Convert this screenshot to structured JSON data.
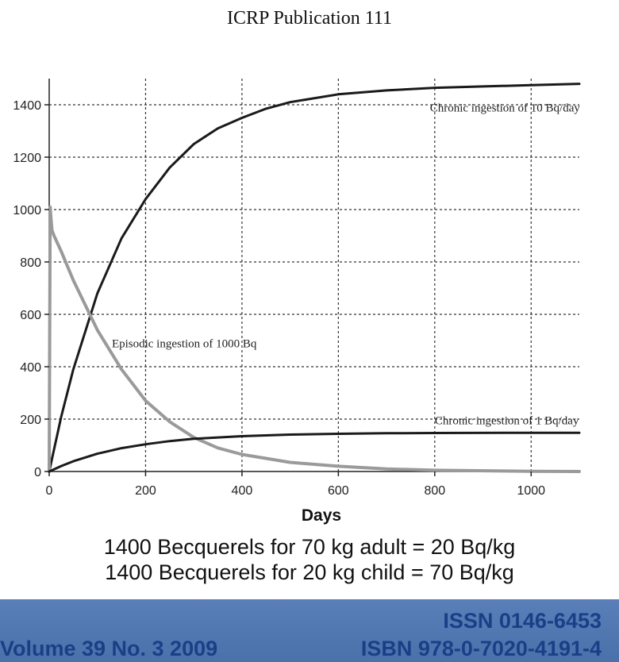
{
  "header": {
    "title": "ICRP Publication 111"
  },
  "chart_data": {
    "type": "line",
    "title": "",
    "xlabel": "Days",
    "ylabel": "",
    "xlim": [
      0,
      1100
    ],
    "ylim": [
      0,
      1500
    ],
    "x_ticks": [
      0,
      200,
      400,
      600,
      800,
      1000
    ],
    "y_ticks": [
      0,
      200,
      400,
      600,
      800,
      1000,
      1200,
      1400
    ],
    "grid": true,
    "series": [
      {
        "name": "Chronic ingestion of 10 Bq/day",
        "color": "#1a1a1a",
        "x": [
          0,
          25,
          50,
          100,
          150,
          200,
          250,
          300,
          350,
          400,
          450,
          500,
          600,
          700,
          800,
          900,
          1000,
          1100
        ],
        "y": [
          0,
          210,
          390,
          680,
          890,
          1040,
          1160,
          1250,
          1310,
          1350,
          1385,
          1410,
          1440,
          1455,
          1465,
          1470,
          1475,
          1480
        ]
      },
      {
        "name": "Episodic ingestion of 1000 Bq",
        "color": "#9a9a9a",
        "x": [
          0,
          2,
          4,
          6,
          10,
          25,
          50,
          100,
          150,
          200,
          250,
          300,
          350,
          400,
          500,
          600,
          700,
          800,
          1000,
          1100
        ],
        "y": [
          0,
          1010,
          960,
          920,
          900,
          840,
          730,
          540,
          390,
          270,
          190,
          130,
          90,
          65,
          35,
          20,
          10,
          5,
          1,
          0
        ]
      },
      {
        "name": "Chronic ingestion of 1 Bq/day",
        "color": "#1a1a1a",
        "x": [
          0,
          25,
          50,
          100,
          150,
          200,
          250,
          300,
          400,
          500,
          600,
          700,
          800,
          1000,
          1100
        ],
        "y": [
          0,
          21,
          39,
          68,
          89,
          104,
          116,
          125,
          135,
          141,
          144,
          146,
          147,
          148,
          148
        ]
      }
    ],
    "annotations": [
      {
        "text": "Chronic ingestion of 10 Bq/day",
        "x": 790,
        "y": 1390
      },
      {
        "text": "Episodic ingestion of 1000 Bq",
        "x": 130,
        "y": 490
      },
      {
        "text": "Chronic ingestion of 1 Bq/day",
        "x": 800,
        "y": 195
      }
    ]
  },
  "summary": {
    "line1": "1400 Becquerels for 70 kg adult = 20 Bq/kg",
    "line2": "1400 Becquerels for 20 kg child = 70 Bq/kg"
  },
  "footer": {
    "volume": "Volume 39 No. 3 2009",
    "issn": "ISSN 0146-6453",
    "isbn": "ISBN 978-0-7020-4191-4",
    "band_color": "#5278b2",
    "text_color": "#1b3f86"
  }
}
